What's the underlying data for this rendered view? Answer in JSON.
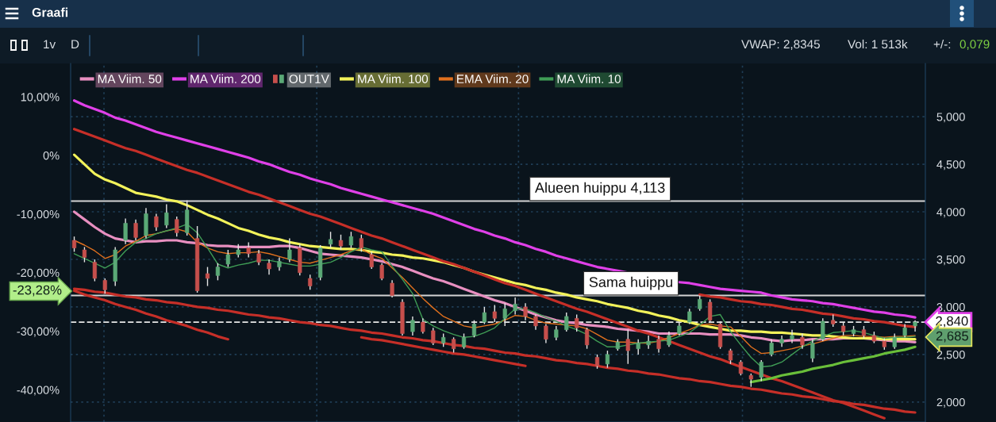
{
  "chart_data": {
    "type": "candlestick",
    "title": "Graafi",
    "categories": [
      null,
      null,
      null,
      null,
      null,
      null,
      null,
      null,
      null,
      null,
      null,
      null,
      null,
      null,
      null,
      null,
      null,
      null,
      null,
      null,
      null,
      null,
      null,
      null,
      null,
      null,
      null,
      null,
      null,
      null,
      null,
      null,
      null,
      null,
      null,
      null,
      null,
      null,
      null,
      null,
      null,
      null,
      null,
      null,
      null,
      null,
      null,
      null,
      null,
      null,
      null,
      null,
      null,
      null,
      null,
      null,
      null,
      null,
      null,
      null,
      null,
      null,
      null,
      null,
      null,
      null,
      null,
      null,
      null,
      null,
      null,
      null,
      null,
      null,
      null,
      null,
      null,
      null,
      null,
      null,
      null,
      null,
      null
    ],
    "ylim": [
      1.79,
      5.56
    ],
    "yticks": [
      {
        "value": 2,
        "label": "2,000"
      },
      {
        "value": 2.5,
        "label": "2,500"
      },
      {
        "value": 3,
        "label": "3,000"
      },
      {
        "value": 3.5,
        "label": "3,500"
      },
      {
        "value": 4,
        "label": "4,000"
      },
      {
        "value": 4.5,
        "label": "4,500"
      },
      {
        "value": 5,
        "label": "5,000"
      }
    ],
    "y2lim": [
      -45.5,
      15.7
    ],
    "y2ticks": [
      {
        "value": -40,
        "label": "-40,00%"
      },
      {
        "value": -30,
        "label": "-30,00%"
      },
      {
        "value": -20,
        "label": "-20,00%"
      },
      {
        "value": -10,
        "label": "-10,00%"
      },
      {
        "value": 0,
        "label": "0%"
      },
      {
        "value": 10,
        "label": "10,00%"
      }
    ],
    "series": [
      {
        "name": "MA Viim. 50",
        "type": "line",
        "color": "#e88fc0",
        "values": [
          4.0,
          3.92,
          3.84,
          3.77,
          3.72,
          3.7,
          3.68,
          3.69,
          3.69,
          3.7,
          3.7,
          3.68,
          3.67,
          3.65,
          3.64,
          3.64,
          3.63,
          3.63,
          3.63,
          3.63,
          3.64,
          3.64,
          3.62,
          3.59,
          3.56,
          3.55,
          3.54,
          3.53,
          3.52,
          3.5,
          3.48,
          3.45,
          3.42,
          3.38,
          3.34,
          3.3,
          3.27,
          3.23,
          3.19,
          3.15,
          3.11,
          3.07,
          3.04,
          3.0,
          2.96,
          2.92,
          2.89,
          2.86,
          2.84,
          2.83,
          2.81,
          2.8,
          2.79,
          2.77,
          2.76,
          2.75,
          2.74,
          2.72,
          2.72,
          2.72,
          2.72,
          2.72,
          2.71,
          2.71,
          2.71,
          2.7,
          2.68,
          2.67,
          2.65,
          2.64,
          2.65,
          2.65,
          2.66,
          2.66,
          2.66,
          2.67,
          2.67,
          2.67,
          2.66,
          2.65,
          2.64,
          2.64,
          2.63
        ]
      },
      {
        "name": "MA Viim. 200",
        "type": "line",
        "color": "#e040e8",
        "values": [
          5.17,
          5.12,
          5.08,
          5.04,
          4.99,
          4.96,
          4.92,
          4.88,
          4.84,
          4.81,
          4.78,
          4.75,
          4.72,
          4.69,
          4.66,
          4.63,
          4.6,
          4.57,
          4.53,
          4.5,
          4.46,
          4.42,
          4.39,
          4.35,
          4.32,
          4.29,
          4.25,
          4.22,
          4.19,
          4.16,
          4.13,
          4.1,
          4.07,
          4.04,
          4.01,
          3.98,
          3.94,
          3.9,
          3.86,
          3.82,
          3.79,
          3.75,
          3.72,
          3.68,
          3.65,
          3.61,
          3.58,
          3.54,
          3.51,
          3.48,
          3.45,
          3.42,
          3.4,
          3.38,
          3.36,
          null,
          null,
          null,
          null,
          3.26,
          3.25,
          3.23,
          3.21,
          3.19,
          3.18,
          3.17,
          3.16,
          3.15,
          3.12,
          3.1,
          3.08,
          3.07,
          3.06,
          3.04,
          3.03,
          3.01,
          2.99,
          2.97,
          2.95,
          2.94,
          2.92,
          2.91,
          2.89
        ]
      },
      {
        "name": "OUT1V",
        "color": "#e6e6e6",
        "ohlc": [
          [
            3.7,
            3.74,
            3.58,
            3.62
          ],
          [
            3.6,
            3.63,
            3.47,
            3.52
          ],
          [
            3.47,
            3.5,
            3.27,
            3.3
          ],
          [
            3.28,
            3.3,
            3.14,
            3.18
          ],
          [
            3.27,
            3.63,
            3.22,
            3.6
          ],
          [
            3.7,
            3.93,
            3.66,
            3.88
          ],
          [
            3.88,
            3.92,
            3.7,
            3.73
          ],
          [
            3.75,
            4.04,
            3.72,
            3.98
          ],
          [
            3.95,
            3.98,
            3.8,
            3.84
          ],
          [
            3.86,
            4.08,
            3.83,
            3.99
          ],
          [
            3.92,
            3.95,
            3.74,
            3.78
          ],
          [
            3.78,
            4.12,
            3.75,
            4.02
          ],
          [
            3.72,
            3.85,
            3.15,
            3.17
          ],
          [
            3.35,
            3.42,
            3.22,
            3.3
          ],
          [
            3.33,
            3.46,
            3.28,
            3.42
          ],
          [
            3.45,
            3.6,
            3.42,
            3.55
          ],
          [
            3.55,
            3.66,
            3.52,
            3.6
          ],
          [
            3.62,
            3.68,
            3.52,
            3.56
          ],
          [
            3.56,
            3.6,
            3.44,
            3.47
          ],
          [
            3.46,
            3.5,
            3.34,
            3.4
          ],
          [
            3.42,
            3.52,
            3.38,
            3.48
          ],
          [
            3.5,
            3.72,
            3.47,
            3.6
          ],
          [
            3.62,
            3.66,
            3.33,
            3.36
          ],
          [
            3.3,
            3.34,
            3.18,
            3.22
          ],
          [
            3.31,
            3.65,
            3.28,
            3.62
          ],
          [
            3.66,
            3.79,
            3.62,
            3.71
          ],
          [
            3.7,
            3.76,
            3.6,
            3.64
          ],
          [
            3.65,
            3.79,
            3.62,
            3.74
          ],
          [
            3.72,
            3.76,
            3.58,
            3.62
          ],
          [
            3.55,
            3.58,
            3.4,
            3.42
          ],
          [
            3.44,
            3.46,
            3.28,
            3.3
          ],
          [
            3.25,
            3.28,
            3.1,
            3.12
          ],
          [
            3.05,
            3.08,
            2.7,
            2.72
          ],
          [
            2.74,
            2.9,
            2.7,
            2.86
          ],
          [
            2.84,
            2.88,
            2.72,
            2.74
          ],
          [
            2.75,
            2.78,
            2.6,
            2.62
          ],
          [
            2.62,
            2.72,
            2.58,
            2.68
          ],
          [
            2.66,
            2.68,
            2.52,
            2.56
          ],
          [
            2.58,
            2.72,
            2.56,
            2.68
          ],
          [
            2.7,
            2.86,
            2.68,
            2.82
          ],
          [
            2.84,
            3.0,
            2.82,
            2.94
          ],
          [
            2.95,
            3.02,
            2.84,
            2.88
          ],
          [
            2.88,
            3.04,
            2.8,
            2.98
          ],
          [
            2.96,
            3.1,
            2.92,
            3.03
          ],
          [
            3.0,
            3.04,
            2.86,
            2.9
          ],
          [
            2.9,
            2.92,
            2.76,
            2.8
          ],
          [
            2.8,
            2.82,
            2.62,
            2.66
          ],
          [
            2.68,
            2.8,
            2.65,
            2.76
          ],
          [
            2.76,
            2.94,
            2.74,
            2.9
          ],
          [
            2.88,
            2.92,
            2.74,
            2.78
          ],
          [
            2.76,
            2.78,
            2.56,
            2.6
          ],
          [
            2.47,
            2.5,
            2.35,
            2.38
          ],
          [
            2.4,
            2.54,
            2.36,
            2.5
          ],
          [
            2.56,
            2.66,
            2.54,
            2.63
          ],
          [
            2.66,
            2.76,
            2.4,
            2.54
          ],
          [
            2.56,
            2.66,
            2.5,
            2.62
          ],
          [
            2.6,
            2.7,
            2.56,
            2.64
          ],
          [
            2.66,
            2.7,
            2.52,
            2.56
          ],
          [
            2.6,
            2.74,
            2.58,
            2.7
          ],
          [
            2.72,
            2.84,
            2.7,
            2.8
          ],
          [
            2.84,
            2.98,
            2.82,
            2.95
          ],
          [
            2.98,
            3.12,
            2.96,
            3.08
          ],
          [
            3.05,
            3.08,
            2.84,
            2.86
          ],
          [
            2.82,
            2.85,
            2.56,
            2.58
          ],
          [
            2.54,
            2.56,
            2.4,
            2.44
          ],
          [
            2.42,
            2.44,
            2.28,
            2.3
          ],
          [
            2.28,
            2.3,
            2.16,
            2.24
          ],
          [
            2.26,
            2.44,
            2.22,
            2.42
          ],
          [
            2.5,
            2.66,
            2.48,
            2.62
          ],
          [
            2.62,
            2.7,
            2.58,
            2.66
          ],
          [
            2.66,
            2.76,
            2.62,
            2.7
          ],
          [
            2.68,
            2.72,
            2.56,
            2.6
          ],
          [
            2.46,
            2.66,
            2.42,
            2.62
          ],
          [
            2.66,
            2.88,
            2.64,
            2.85
          ],
          [
            2.86,
            2.92,
            2.79,
            2.82
          ],
          [
            2.8,
            2.84,
            2.7,
            2.74
          ],
          [
            2.72,
            2.8,
            2.69,
            2.76
          ],
          [
            2.76,
            2.8,
            2.67,
            2.7
          ],
          [
            2.7,
            2.74,
            2.62,
            2.64
          ],
          [
            2.64,
            2.67,
            2.55,
            2.58
          ],
          [
            2.58,
            2.72,
            2.56,
            2.68
          ],
          [
            2.7,
            2.82,
            2.68,
            2.78
          ],
          [
            2.8,
            2.86,
            2.74,
            2.84
          ]
        ],
        "colors": [
          "#c64f4c",
          "#c64f4c",
          "#c64f4c",
          "#c64f4c",
          "#5aa876",
          "#5aa876",
          "#c64f4c",
          "#5aa876",
          "#c64f4c",
          "#5aa876",
          "#c64f4c",
          "#5aa876",
          "#c64f4c",
          "#c64f4c",
          "#5aa876",
          "#5aa876",
          "#5aa876",
          "#c64f4c",
          "#c64f4c",
          "#c64f4c",
          "#5aa876",
          "#5aa876",
          "#c64f4c",
          "#c64f4c",
          "#5aa876",
          "#5aa876",
          "#c64f4c",
          "#5aa876",
          "#c64f4c",
          "#c64f4c",
          "#c64f4c",
          "#c64f4c",
          "#c64f4c",
          "#5aa876",
          "#c64f4c",
          "#c64f4c",
          "#5aa876",
          "#c64f4c",
          "#5aa876",
          "#5aa876",
          "#5aa876",
          "#c64f4c",
          "#5aa876",
          "#5aa876",
          "#c64f4c",
          "#c64f4c",
          "#c64f4c",
          "#5aa876",
          "#5aa876",
          "#c64f4c",
          "#c64f4c",
          "#c64f4c",
          "#5aa876",
          "#5aa876",
          "#c64f4c",
          "#5aa876",
          "#5aa876",
          "#c64f4c",
          "#5aa876",
          "#5aa876",
          "#5aa876",
          "#5aa876",
          "#c64f4c",
          "#c64f4c",
          "#c64f4c",
          "#c64f4c",
          "#c64f4c",
          "#5aa876",
          "#5aa876",
          "#5aa876",
          "#5aa876",
          "#c64f4c",
          "#5aa876",
          "#5aa876",
          "#c64f4c",
          "#c64f4c",
          "#5aa876",
          "#c64f4c",
          "#c64f4c",
          "#c64f4c",
          "#5aa876",
          "#5aa876",
          "#5aa876"
        ]
      },
      {
        "name": "MA Viim. 100",
        "type": "line",
        "color": "#f2f25a",
        "values": [
          4.6,
          4.5,
          4.4,
          4.34,
          4.3,
          4.25,
          4.2,
          4.18,
          4.16,
          4.13,
          4.11,
          4.07,
          4.02,
          3.97,
          3.93,
          3.88,
          3.83,
          3.8,
          3.76,
          3.73,
          3.71,
          3.68,
          3.66,
          3.64,
          3.63,
          3.62,
          3.61,
          3.61,
          3.6,
          3.58,
          3.57,
          3.55,
          3.54,
          3.52,
          3.51,
          3.49,
          3.47,
          3.44,
          3.41,
          3.37,
          3.34,
          3.31,
          3.28,
          3.25,
          3.23,
          3.2,
          3.18,
          3.15,
          3.13,
          3.1,
          3.08,
          3.06,
          3.03,
          3.01,
          2.99,
          2.96,
          2.94,
          2.91,
          2.89,
          2.86,
          2.84,
          2.81,
          2.79,
          2.77,
          2.75,
          2.75,
          2.74,
          2.74,
          2.73,
          2.73,
          2.72,
          2.71,
          2.7,
          2.7,
          2.69,
          2.68,
          2.67,
          2.67,
          2.67,
          2.66,
          2.66,
          2.66,
          2.66
        ]
      },
      {
        "name": "EMA Viim. 20",
        "type": "line",
        "color": "#e0701e",
        "values": [
          3.7,
          3.65,
          3.59,
          3.51,
          3.55,
          3.64,
          3.69,
          3.75,
          3.77,
          3.8,
          3.82,
          3.79,
          3.68,
          3.62,
          3.58,
          3.56,
          3.57,
          3.57,
          3.58,
          3.56,
          3.53,
          3.5,
          3.47,
          3.46,
          3.49,
          3.52,
          3.55,
          3.59,
          3.61,
          3.55,
          3.51,
          3.41,
          3.31,
          3.2,
          3.09,
          2.99,
          2.9,
          2.85,
          2.8,
          2.78,
          2.8,
          2.82,
          2.86,
          2.91,
          2.9,
          2.86,
          2.83,
          2.82,
          2.81,
          2.8,
          2.77,
          2.71,
          2.65,
          2.63,
          2.63,
          2.62,
          2.62,
          2.64,
          2.68,
          2.72,
          2.76,
          2.81,
          2.82,
          2.8,
          2.79,
          2.69,
          2.58,
          2.51,
          2.52,
          2.54,
          2.56,
          2.59,
          2.61,
          2.64,
          2.67,
          2.7,
          2.7,
          2.69,
          2.69,
          2.68,
          2.69,
          2.69,
          2.7
        ]
      },
      {
        "name": "MA Viim. 10",
        "type": "line",
        "color": "#3f9c55",
        "values": [
          3.56,
          3.51,
          3.46,
          3.41,
          3.47,
          3.59,
          3.68,
          3.72,
          3.77,
          3.8,
          3.83,
          3.87,
          3.78,
          3.62,
          3.45,
          3.41,
          3.44,
          3.46,
          3.49,
          3.49,
          3.47,
          3.45,
          3.43,
          3.43,
          3.45,
          3.47,
          3.52,
          3.58,
          3.63,
          3.6,
          3.58,
          3.43,
          3.29,
          3.14,
          2.87,
          2.8,
          2.75,
          2.71,
          2.68,
          2.69,
          2.73,
          2.78,
          2.88,
          2.98,
          2.98,
          2.94,
          2.89,
          2.85,
          2.8,
          2.76,
          2.71,
          2.64,
          2.58,
          2.58,
          2.6,
          2.62,
          2.63,
          2.64,
          2.65,
          2.69,
          2.73,
          2.81,
          2.9,
          2.92,
          2.74,
          2.6,
          2.47,
          2.37,
          2.38,
          2.42,
          2.5,
          2.58,
          2.64,
          2.69,
          2.73,
          2.74,
          2.75,
          2.73,
          2.7,
          2.67,
          2.68,
          2.68,
          2.69
        ]
      },
      {
        "type": "line",
        "color": "#c62f28",
        "values": [
          4.87,
          4.83,
          4.79,
          4.75,
          4.71,
          4.67,
          4.64,
          4.6,
          4.56,
          4.52,
          4.48,
          4.44,
          4.41,
          4.37,
          4.33,
          4.29,
          4.25,
          4.21,
          4.18,
          4.14,
          4.1,
          4.06,
          4.02,
          3.98,
          3.95,
          3.91,
          3.87,
          3.83,
          3.79,
          3.75,
          3.72,
          3.68,
          3.64,
          3.6,
          3.56,
          3.52,
          3.48,
          3.45,
          3.41,
          3.37,
          3.33,
          3.29,
          3.25,
          3.22,
          3.18,
          3.14,
          3.1,
          3.06,
          3.02,
          2.98,
          2.95,
          2.91,
          2.87,
          2.83,
          2.79,
          2.75,
          2.72,
          2.68,
          2.64,
          2.6,
          2.56,
          2.52,
          2.48,
          2.45,
          2.41,
          2.37,
          2.33,
          2.29,
          2.25,
          2.22,
          2.18,
          2.14,
          2.1,
          2.06,
          2.02,
          1.99,
          1.95,
          1.91,
          1.87,
          1.83,
          null,
          null,
          null
        ]
      },
      {
        "type": "line",
        "color": "#c62f28",
        "values": [
          3.19,
          3.18,
          3.16,
          3.15,
          3.13,
          3.11,
          3.1,
          3.08,
          3.07,
          3.05,
          3.04,
          3.02,
          3.0,
          2.99,
          2.97,
          2.96,
          2.94,
          2.92,
          2.91,
          2.89,
          2.88,
          2.86,
          2.84,
          2.83,
          2.81,
          2.8,
          2.78,
          2.76,
          2.75,
          2.73,
          2.72,
          2.7,
          2.68,
          2.67,
          2.65,
          2.64,
          2.62,
          2.6,
          2.59,
          2.57,
          2.56,
          2.54,
          2.52,
          2.51,
          2.49,
          2.48,
          2.46,
          2.44,
          2.43,
          2.41,
          2.4,
          2.38,
          2.36,
          2.35,
          2.33,
          2.32,
          2.3,
          2.29,
          2.27,
          2.25,
          2.24,
          2.22,
          2.21,
          2.19,
          2.17,
          2.16,
          2.14,
          2.13,
          2.11,
          2.09,
          2.08,
          2.06,
          2.05,
          2.03,
          2.01,
          2.0,
          1.98,
          1.97,
          1.95,
          1.93,
          1.92,
          1.9,
          1.89
        ]
      },
      {
        "type": "line",
        "color": "#c62f28",
        "values": [
          3.17,
          3.13,
          3.1,
          3.07,
          3.03,
          3.0,
          2.97,
          2.93,
          2.9,
          2.86,
          2.83,
          2.8,
          2.76,
          2.73,
          2.69,
          2.66,
          null,
          null,
          null,
          null,
          null,
          null,
          null,
          null,
          null,
          null,
          null,
          null,
          null,
          null,
          null,
          null,
          null,
          null,
          null,
          null,
          null,
          null,
          null,
          null,
          null,
          null,
          null,
          null,
          null,
          null,
          null,
          null,
          null,
          null,
          null,
          null,
          null,
          null,
          null,
          null,
          null,
          null,
          null,
          null,
          null,
          null,
          null,
          null,
          null,
          null,
          null,
          null,
          null,
          null,
          null,
          null,
          null,
          null,
          null,
          null,
          null,
          null,
          null,
          null,
          null,
          null,
          null
        ]
      },
      {
        "type": "line",
        "color": "#c62f28",
        "values": [
          null,
          null,
          null,
          null,
          null,
          null,
          null,
          null,
          null,
          null,
          null,
          null,
          null,
          null,
          null,
          null,
          null,
          null,
          null,
          null,
          null,
          null,
          null,
          null,
          null,
          null,
          null,
          null,
          2.68,
          2.66,
          2.65,
          2.63,
          2.61,
          2.59,
          2.57,
          2.55,
          2.53,
          2.51,
          2.5,
          2.48,
          2.46,
          2.44,
          2.42,
          2.4,
          2.38,
          null,
          null,
          null,
          null,
          null,
          null,
          null,
          null,
          null,
          null,
          null,
          null,
          null,
          null,
          null,
          null,
          null,
          null,
          null,
          null,
          null,
          null,
          null,
          null,
          null,
          null,
          null,
          null,
          null,
          null,
          null,
          null,
          null,
          null,
          null,
          null,
          null,
          null
        ]
      },
      {
        "type": "line",
        "color": "#c62f28",
        "values": [
          null,
          null,
          null,
          null,
          null,
          null,
          null,
          null,
          null,
          null,
          null,
          null,
          null,
          null,
          null,
          null,
          null,
          null,
          null,
          null,
          null,
          null,
          null,
          null,
          null,
          null,
          null,
          null,
          null,
          null,
          null,
          null,
          null,
          null,
          null,
          null,
          null,
          null,
          null,
          null,
          null,
          null,
          null,
          null,
          null,
          null,
          null,
          null,
          null,
          null,
          null,
          null,
          null,
          null,
          null,
          null,
          null,
          null,
          null,
          null,
          null,
          3.13,
          3.11,
          3.1,
          3.08,
          3.06,
          3.05,
          3.03,
          3.02,
          3.0,
          2.98,
          2.97,
          2.95,
          2.93,
          2.92,
          2.9,
          2.88,
          2.87,
          2.85,
          2.84,
          2.82,
          2.8,
          2.79
        ]
      },
      {
        "type": "line",
        "color": "#6abf3a",
        "values": [
          null,
          null,
          null,
          null,
          null,
          null,
          null,
          null,
          null,
          null,
          null,
          null,
          null,
          null,
          null,
          null,
          null,
          null,
          null,
          null,
          null,
          null,
          null,
          null,
          null,
          null,
          null,
          null,
          null,
          null,
          null,
          null,
          null,
          null,
          null,
          null,
          null,
          null,
          null,
          null,
          null,
          null,
          null,
          null,
          null,
          null,
          null,
          null,
          null,
          null,
          null,
          null,
          null,
          null,
          null,
          null,
          null,
          null,
          null,
          null,
          null,
          null,
          null,
          null,
          null,
          null,
          2.21,
          2.23,
          2.25,
          2.28,
          2.3,
          2.32,
          2.35,
          2.37,
          2.39,
          2.42,
          2.44,
          2.46,
          2.48,
          2.51,
          2.53,
          2.55,
          2.58
        ]
      }
    ],
    "ref_lines": [
      {
        "axis": "y",
        "value": 4.113,
        "label": "Alueen huippu 4,113",
        "color": "#d4d4d4"
      },
      {
        "axis": "y",
        "value": 3.12,
        "label": "Sama huippu",
        "color": "#d4d4d4"
      },
      {
        "axis": "y",
        "value": 2.84,
        "label": "2,840",
        "color": "#e8e8e8",
        "line_style": "dashed"
      }
    ],
    "annotations": [
      "1v",
      "D",
      "VWAP: 2,8345",
      "Vol: 1 513k",
      "+/-:",
      "0,079",
      "2,685",
      "-23,28%"
    ],
    "grid": true,
    "legend": "top left",
    "tick_labels": "y"
  }
}
